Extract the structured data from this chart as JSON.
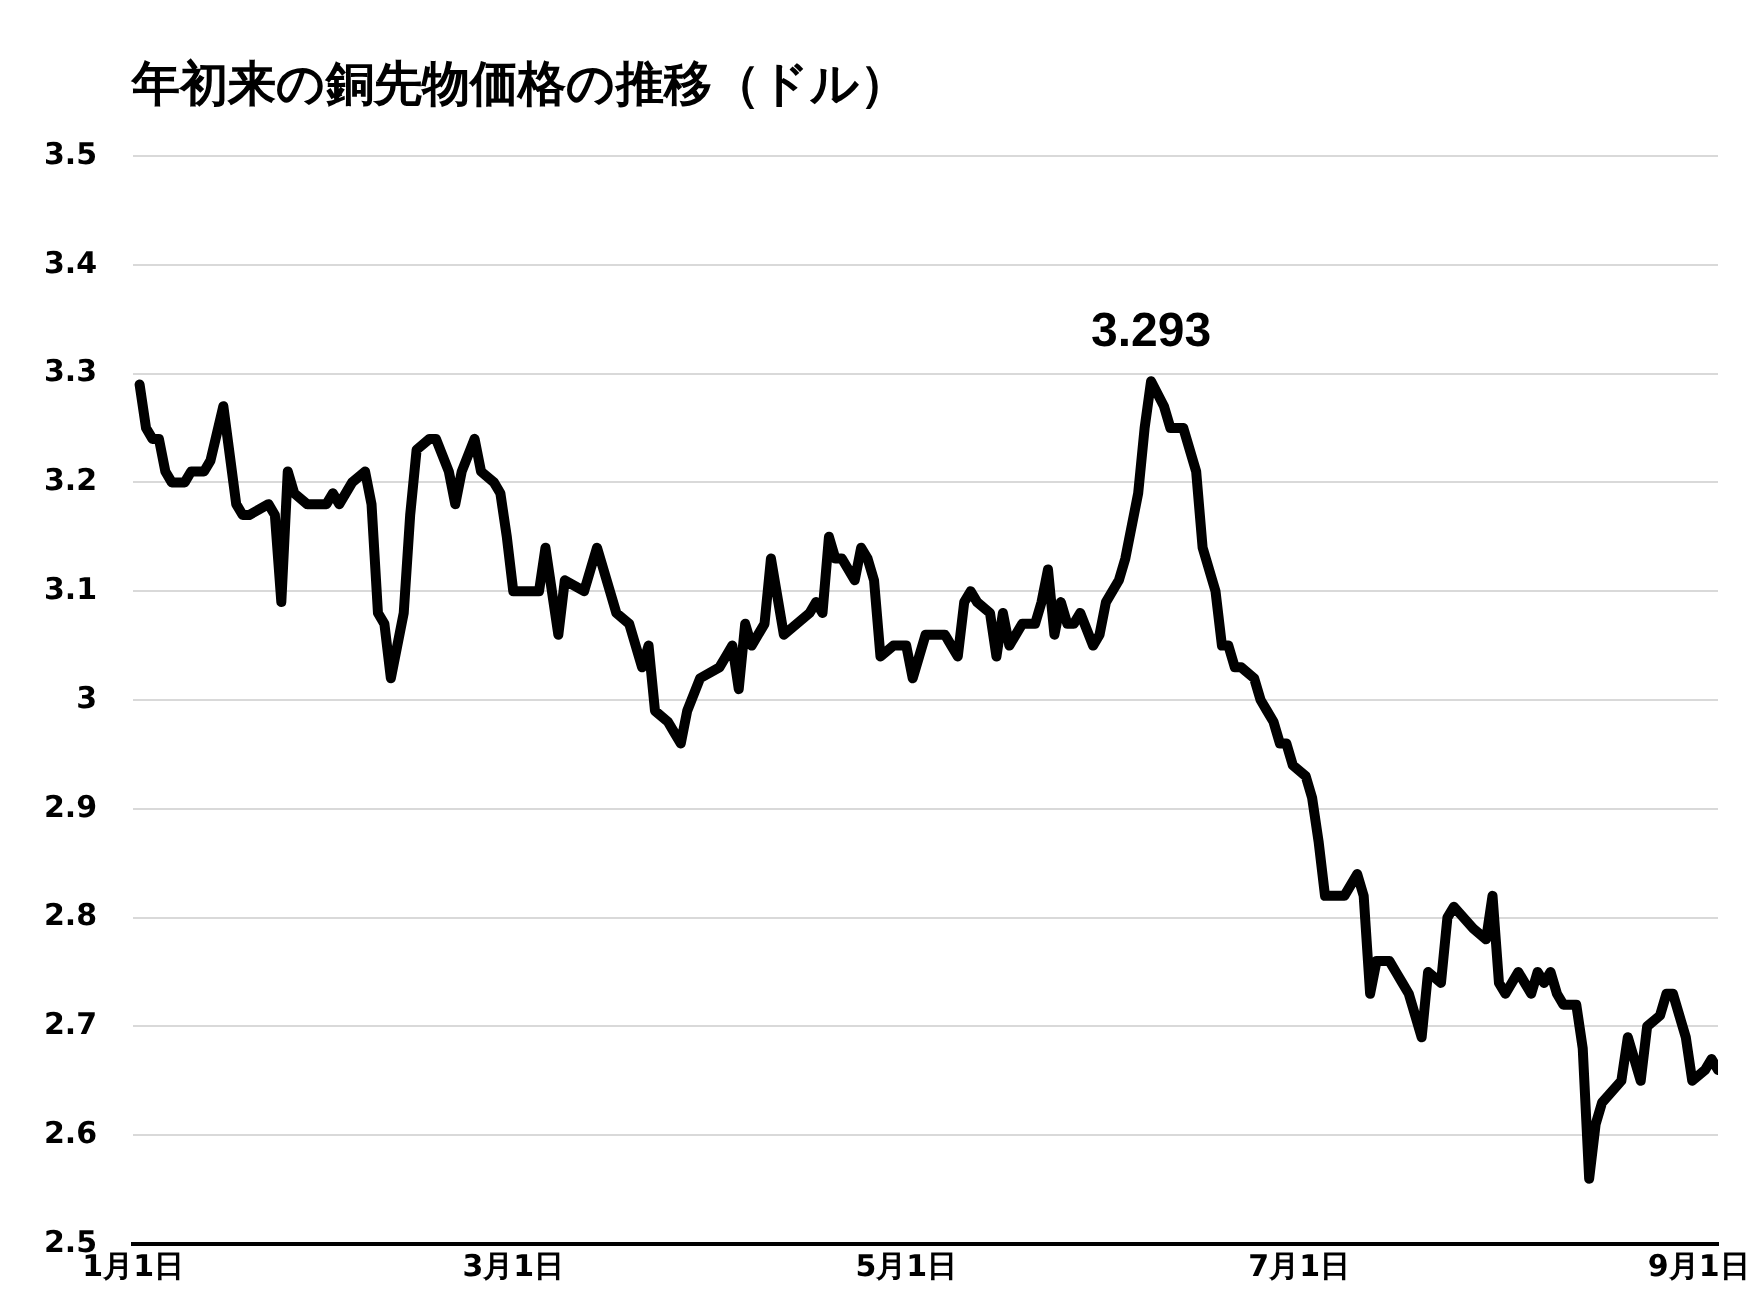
{
  "chart_data": {
    "type": "line",
    "title": "年初来の銅先物価格の推移（ドル）",
    "x": [
      "--01-02",
      "--01-03",
      "--01-04",
      "--01-05",
      "--01-06",
      "--01-07",
      "--01-09",
      "--01-10",
      "--01-12",
      "--01-13",
      "--01-15",
      "--01-17",
      "--01-18",
      "--01-19",
      "--01-22",
      "--01-23",
      "--01-24",
      "--01-25",
      "--01-26",
      "--01-28",
      "--01-31",
      "--02-01",
      "--02-02",
      "--02-04",
      "--02-06",
      "--02-07",
      "--02-08",
      "--02-09",
      "--02-10",
      "--02-12",
      "--02-13",
      "--02-14",
      "--02-16",
      "--02-17",
      "--02-19",
      "--02-20",
      "--02-21",
      "--02-23",
      "--02-24",
      "--02-26",
      "--02-27",
      "--02-28",
      "--03-01",
      "--03-02",
      "--03-05",
      "--03-06",
      "--03-08",
      "--03-09",
      "--03-12",
      "--03-13",
      "--03-14",
      "--03-16",
      "--03-17",
      "--03-19",
      "--03-20",
      "--03-21",
      "--03-22",
      "--03-23",
      "--03-25",
      "--03-26",
      "--03-27",
      "--03-28",
      "--03-30",
      "--04-02",
      "--04-03",
      "--04-04",
      "--04-05",
      "--04-06",
      "--04-07",
      "--04-09",
      "--04-10",
      "--04-12",
      "--04-16",
      "--04-17",
      "--04-18",
      "--04-19",
      "--04-20",
      "--04-21",
      "--04-23",
      "--04-24",
      "--04-25",
      "--04-26",
      "--04-27",
      "--04-29",
      "--05-01",
      "--05-02",
      "--05-03",
      "--05-04",
      "--05-05",
      "--05-07",
      "--05-08",
      "--05-09",
      "--05-10",
      "--05-11",
      "--05-12",
      "--05-14",
      "--05-15",
      "--05-16",
      "--05-17",
      "--05-19",
      "--05-21",
      "--05-22",
      "--05-23",
      "--05-24",
      "--05-25",
      "--05-26",
      "--05-27",
      "--05-28",
      "--05-30",
      "--05-31",
      "--06-01",
      "--06-03",
      "--06-04",
      "--06-06",
      "--06-07",
      "--06-08",
      "--06-10",
      "--06-11",
      "--06-13",
      "--06-15",
      "--06-16",
      "--06-18",
      "--06-19",
      "--06-20",
      "--06-21",
      "--06-22",
      "--06-24",
      "--06-25",
      "--06-26",
      "--06-27",
      "--06-28",
      "--06-29",
      "--06-30",
      "--07-02",
      "--07-03",
      "--07-04",
      "--07-05",
      "--07-07",
      "--07-08",
      "--07-10",
      "--07-11",
      "--07-12",
      "--07-13",
      "--07-15",
      "--07-16",
      "--07-17",
      "--07-18",
      "--07-20",
      "--07-21",
      "--07-23",
      "--07-24",
      "--07-25",
      "--07-28",
      "--07-30",
      "--07-31",
      "--08-01",
      "--08-02",
      "--08-04",
      "--08-05",
      "--08-06",
      "--08-07",
      "--08-08",
      "--08-09",
      "--08-10",
      "--08-11",
      "--08-13",
      "--08-14",
      "--08-15",
      "--08-16",
      "--08-17",
      "--08-20",
      "--08-21",
      "--08-22",
      "--08-23",
      "--08-24",
      "--08-26",
      "--08-27",
      "--08-28",
      "--08-29",
      "--08-30",
      "--08-31",
      "--09-02",
      "--09-03",
      "--09-04"
    ],
    "series": [
      {
        "color": "#000000",
        "values": [
          3.29,
          3.25,
          3.24,
          3.24,
          3.21,
          3.2,
          3.2,
          3.21,
          3.21,
          3.22,
          3.27,
          3.18,
          3.17,
          3.17,
          3.18,
          3.17,
          3.09,
          3.21,
          3.19,
          3.18,
          3.18,
          3.19,
          3.18,
          3.2,
          3.21,
          3.18,
          3.08,
          3.07,
          3.02,
          3.08,
          3.17,
          3.23,
          3.24,
          3.24,
          3.21,
          3.18,
          3.21,
          3.24,
          3.21,
          3.2,
          3.19,
          3.15,
          3.1,
          3.1,
          3.1,
          3.14,
          3.06,
          3.11,
          3.1,
          3.12,
          3.14,
          3.1,
          3.08,
          3.07,
          3.05,
          3.03,
          3.05,
          2.99,
          2.98,
          2.97,
          2.96,
          2.99,
          3.02,
          3.03,
          3.04,
          3.05,
          3.01,
          3.07,
          3.05,
          3.07,
          3.13,
          3.06,
          3.08,
          3.09,
          3.08,
          3.15,
          3.13,
          3.13,
          3.11,
          3.14,
          3.13,
          3.11,
          3.04,
          3.05,
          3.05,
          3.02,
          3.04,
          3.06,
          3.06,
          3.06,
          3.05,
          3.04,
          3.09,
          3.1,
          3.09,
          3.08,
          3.04,
          3.08,
          3.05,
          3.07,
          3.07,
          3.09,
          3.12,
          3.06,
          3.09,
          3.07,
          3.07,
          3.08,
          3.05,
          3.06,
          3.09,
          3.11,
          3.13,
          3.19,
          3.25,
          3.293,
          3.27,
          3.25,
          3.25,
          3.21,
          3.14,
          3.1,
          3.05,
          3.05,
          3.03,
          3.03,
          3.02,
          3.0,
          2.99,
          2.98,
          2.96,
          2.96,
          2.94,
          2.93,
          2.91,
          2.87,
          2.82,
          2.82,
          2.82,
          2.84,
          2.82,
          2.73,
          2.76,
          2.76,
          2.75,
          2.74,
          2.73,
          2.69,
          2.75,
          2.74,
          2.8,
          2.81,
          2.79,
          2.78,
          2.82,
          2.74,
          2.73,
          2.75,
          2.74,
          2.73,
          2.75,
          2.74,
          2.75,
          2.73,
          2.72,
          2.72,
          2.68,
          2.56,
          2.61,
          2.63,
          2.65,
          2.69,
          2.67,
          2.65,
          2.7,
          2.71,
          2.73,
          2.73,
          2.71,
          2.69,
          2.65,
          2.66,
          2.67,
          2.66
        ]
      }
    ],
    "xlim": [
      "--01-01",
      "--09-04"
    ],
    "xticks": [
      {
        "value": "--01-01",
        "label": "1月1日"
      },
      {
        "value": "--03-01",
        "label": "3月1日"
      },
      {
        "value": "--05-01",
        "label": "5月1日"
      },
      {
        "value": "--07-01",
        "label": "7月1日"
      },
      {
        "value": "--09-01",
        "label": "9月1日"
      }
    ],
    "ylim": [
      2.5,
      3.5
    ],
    "yticks": [
      2.5,
      2.6,
      2.7,
      2.8,
      2.9,
      3,
      3.1,
      3.2,
      3.3,
      3.4,
      3.5
    ],
    "grid": "y",
    "legend": false,
    "marker": "none",
    "line_style": "solid",
    "annotations": [
      {
        "text": "3.293",
        "x": "--06-08",
        "y": 3.293
      }
    ]
  }
}
